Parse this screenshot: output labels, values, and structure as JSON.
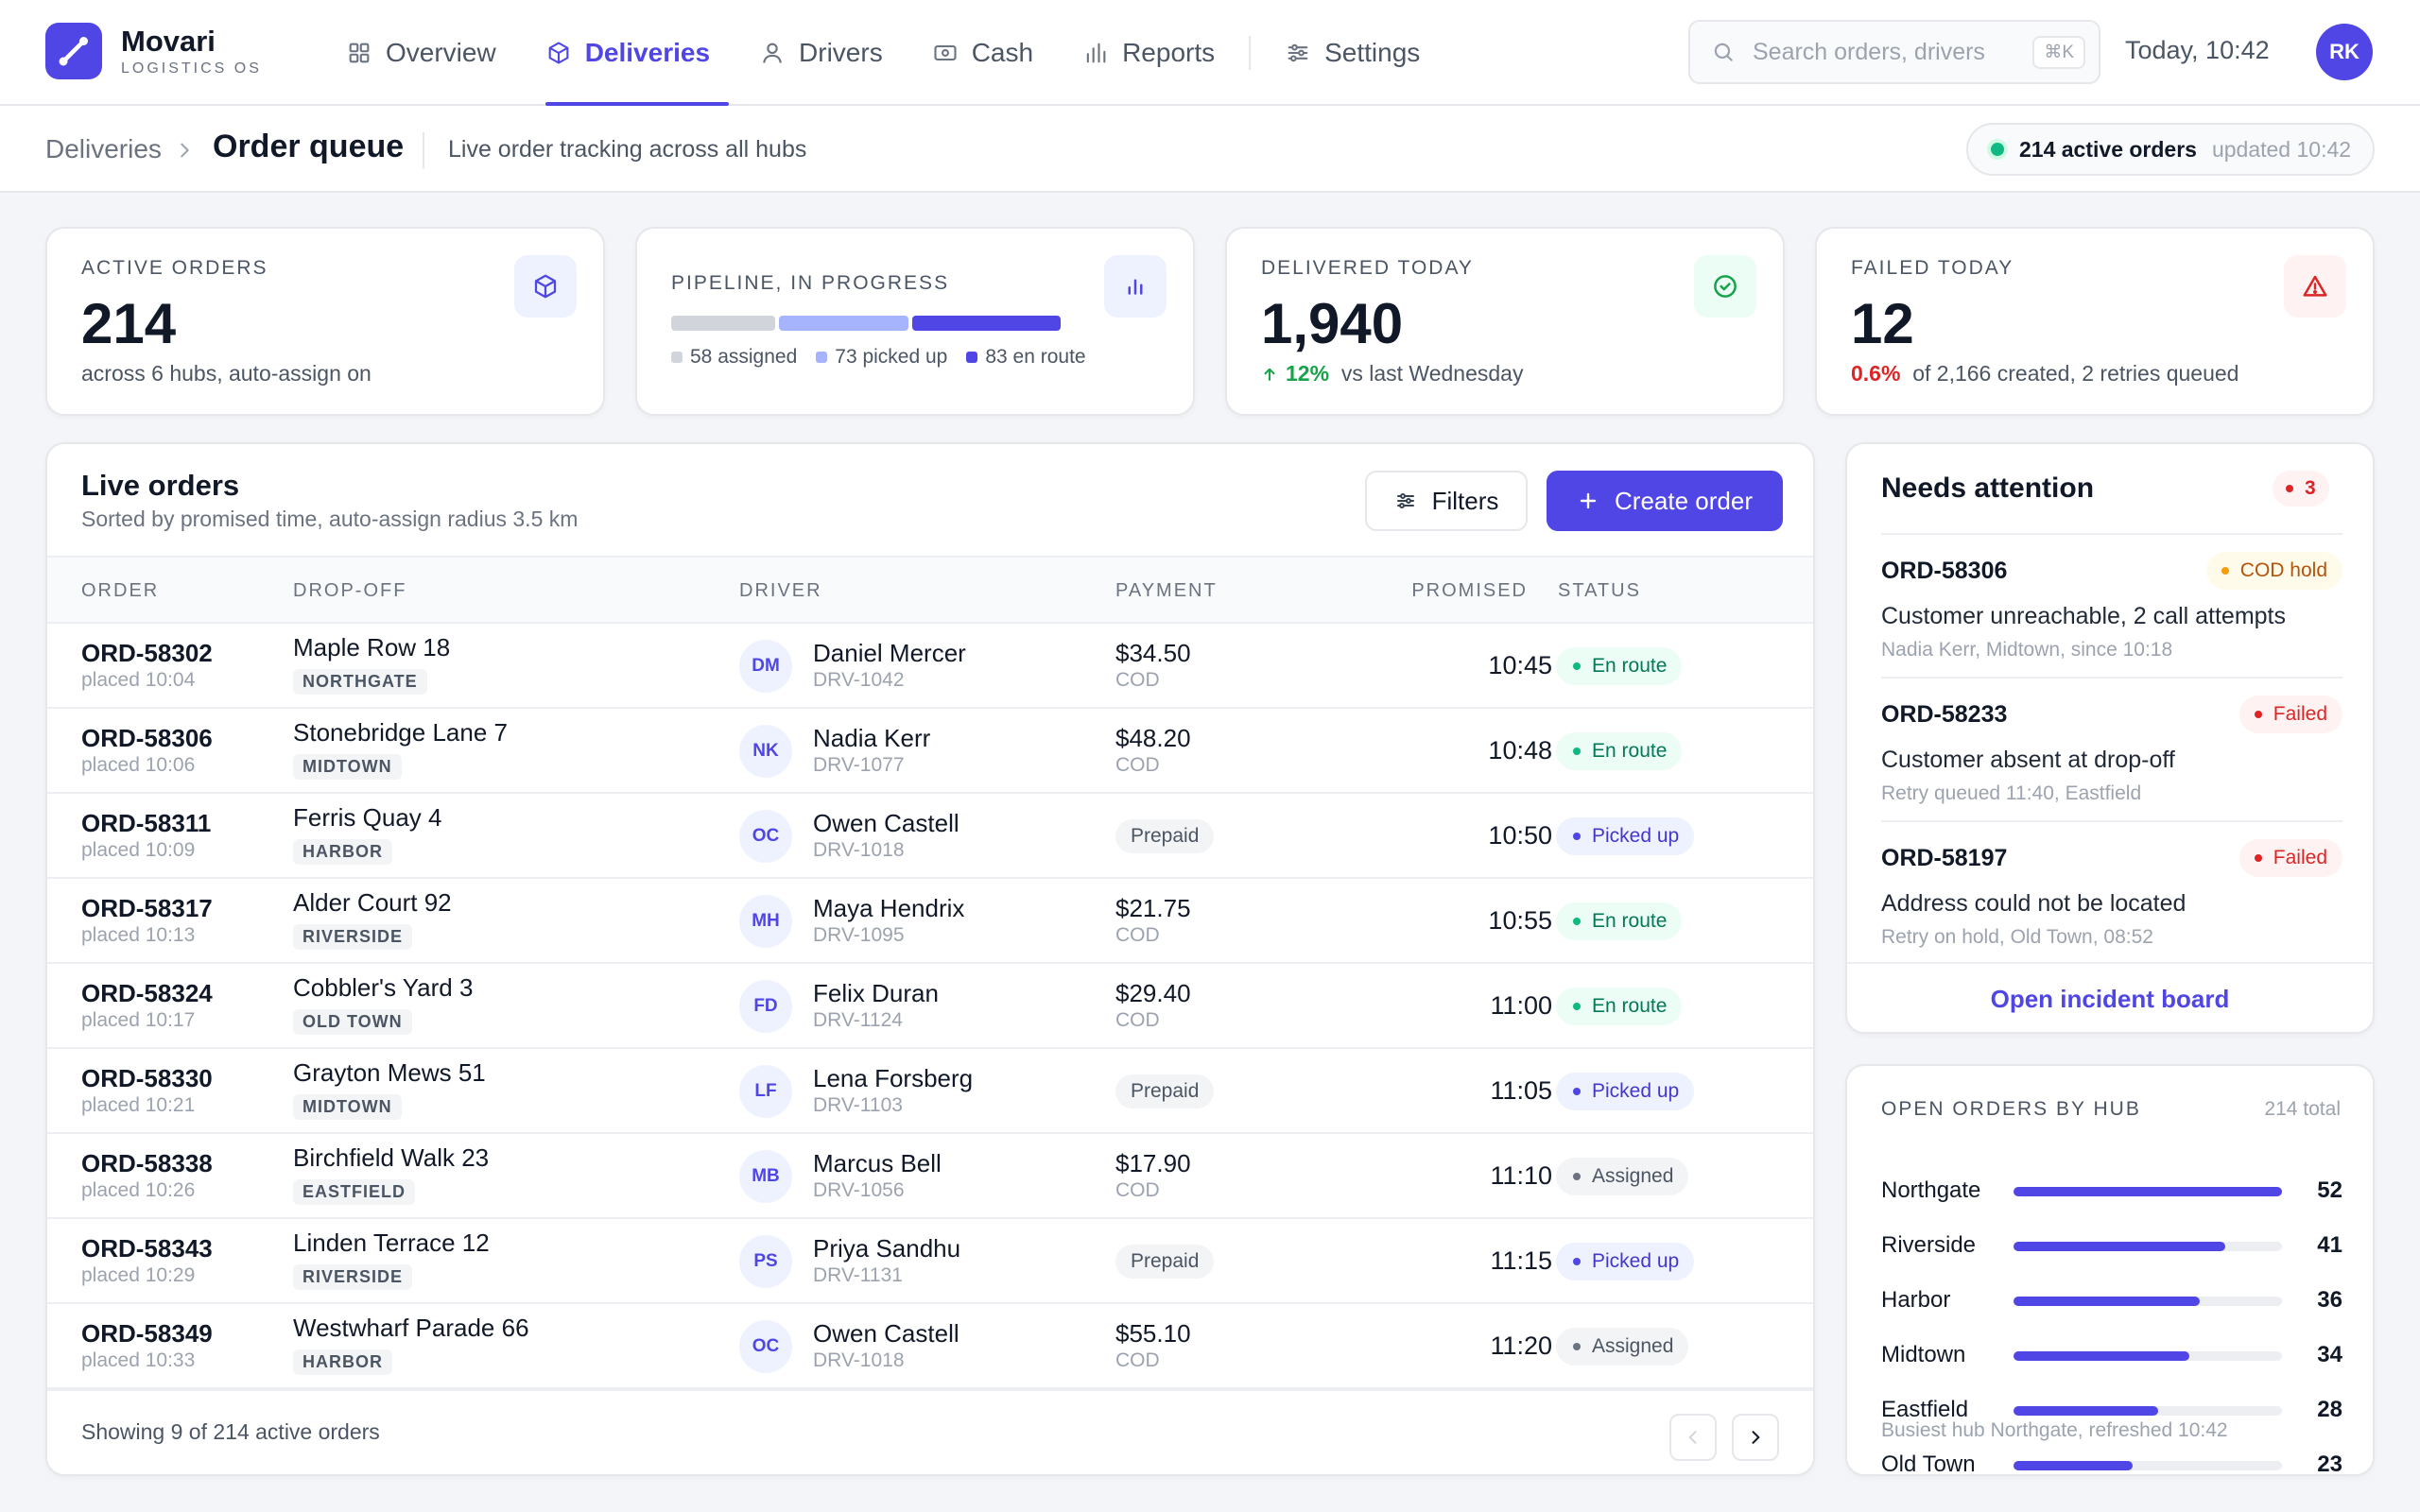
{
  "app": {
    "brand_name": "Movari",
    "brand_sub": "LOGISTICS OS",
    "nav": [
      {
        "label": "Overview",
        "icon": "grid-icon",
        "active": false
      },
      {
        "label": "Deliveries",
        "icon": "box-icon",
        "active": true
      },
      {
        "label": "Drivers",
        "icon": "user-icon",
        "active": false
      },
      {
        "label": "Cash",
        "icon": "cash-icon",
        "active": false
      },
      {
        "label": "Reports",
        "icon": "bar-chart-icon",
        "active": false
      },
      {
        "label": "Settings",
        "icon": "sliders-icon",
        "active": false
      }
    ],
    "search_placeholder": "Search orders, drivers",
    "search_shortcut": "⌘K",
    "clock": "Today, 10:42",
    "user_initials": "RK",
    "accent": "#4f46e5"
  },
  "subheader": {
    "breadcrumb_root": "Deliveries",
    "title": "Order queue",
    "description": "Live order tracking across all hubs",
    "live_count": "214 active orders",
    "live_updated": "updated 10:42"
  },
  "stats": {
    "active": {
      "label": "ACTIVE ORDERS",
      "value": "214",
      "sub": "across 6 hubs, auto-assign on"
    },
    "pipeline": {
      "label": "PIPELINE, IN PROGRESS",
      "segments": [
        {
          "label": "58 assigned",
          "value": 58,
          "color": "#d1d5db"
        },
        {
          "label": "73 picked up",
          "value": 73,
          "color": "#a5b4fc"
        },
        {
          "label": "83 en route",
          "value": 83,
          "color": "#4f46e5"
        }
      ]
    },
    "delivered": {
      "label": "DELIVERED TODAY",
      "value": "1,940",
      "delta": "12%",
      "delta_text": "vs last Wednesday"
    },
    "failed": {
      "label": "FAILED TODAY",
      "value": "12",
      "rate": "0.6%",
      "rate_text": "of 2,166 created, 2 retries queued"
    }
  },
  "orders": {
    "title": "Live orders",
    "subtitle": "Sorted by promised time, auto-assign radius 3.5 km",
    "filters_label": "Filters",
    "create_label": "Create order",
    "columns": {
      "order": "ORDER",
      "dropoff": "DROP-OFF",
      "driver": "DRIVER",
      "payment": "PAYMENT",
      "promised": "PROMISED",
      "status": "STATUS"
    },
    "rows": [
      {
        "id": "ORD-58302",
        "placed": "placed 10:04",
        "address": "Maple Row 18",
        "hub": "NORTHGATE",
        "initials": "DM",
        "driver": "Daniel Mercer",
        "driver_code": "DRV-1042",
        "amount": "$34.50",
        "method": "COD",
        "promised": "10:45",
        "status": "En route",
        "status_key": "enroute"
      },
      {
        "id": "ORD-58306",
        "placed": "placed 10:06",
        "address": "Stonebridge Lane 7",
        "hub": "MIDTOWN",
        "initials": "NK",
        "driver": "Nadia Kerr",
        "driver_code": "DRV-1077",
        "amount": "$48.20",
        "method": "COD",
        "promised": "10:48",
        "status": "En route",
        "status_key": "enroute"
      },
      {
        "id": "ORD-58311",
        "placed": "placed 10:09",
        "address": "Ferris Quay 4",
        "hub": "HARBOR",
        "initials": "OC",
        "driver": "Owen Castell",
        "driver_code": "DRV-1018",
        "amount": "",
        "method": "Prepaid",
        "promised": "10:50",
        "status": "Picked up",
        "status_key": "picked"
      },
      {
        "id": "ORD-58317",
        "placed": "placed 10:13",
        "address": "Alder Court 92",
        "hub": "RIVERSIDE",
        "initials": "MH",
        "driver": "Maya Hendrix",
        "driver_code": "DRV-1095",
        "amount": "$21.75",
        "method": "COD",
        "promised": "10:55",
        "status": "En route",
        "status_key": "enroute"
      },
      {
        "id": "ORD-58324",
        "placed": "placed 10:17",
        "address": "Cobbler's Yard 3",
        "hub": "OLD TOWN",
        "initials": "FD",
        "driver": "Felix Duran",
        "driver_code": "DRV-1124",
        "amount": "$29.40",
        "method": "COD",
        "promised": "11:00",
        "status": "En route",
        "status_key": "enroute"
      },
      {
        "id": "ORD-58330",
        "placed": "placed 10:21",
        "address": "Grayton Mews 51",
        "hub": "MIDTOWN",
        "initials": "LF",
        "driver": "Lena Forsberg",
        "driver_code": "DRV-1103",
        "amount": "",
        "method": "Prepaid",
        "promised": "11:05",
        "status": "Picked up",
        "status_key": "picked"
      },
      {
        "id": "ORD-58338",
        "placed": "placed 10:26",
        "address": "Birchfield Walk 23",
        "hub": "EASTFIELD",
        "initials": "MB",
        "driver": "Marcus Bell",
        "driver_code": "DRV-1056",
        "amount": "$17.90",
        "method": "COD",
        "promised": "11:10",
        "status": "Assigned",
        "status_key": "assigned"
      },
      {
        "id": "ORD-58343",
        "placed": "placed 10:29",
        "address": "Linden Terrace 12",
        "hub": "RIVERSIDE",
        "initials": "PS",
        "driver": "Priya Sandhu",
        "driver_code": "DRV-1131",
        "amount": "",
        "method": "Prepaid",
        "promised": "11:15",
        "status": "Picked up",
        "status_key": "picked"
      },
      {
        "id": "ORD-58349",
        "placed": "placed 10:33",
        "address": "Westwharf Parade 66",
        "hub": "HARBOR",
        "initials": "OC",
        "driver": "Owen Castell",
        "driver_code": "DRV-1018",
        "amount": "$55.10",
        "method": "COD",
        "promised": "11:20",
        "status": "Assigned",
        "status_key": "assigned"
      }
    ],
    "footer": "Showing 9 of 214 active orders"
  },
  "attention": {
    "title": "Needs attention",
    "count": "3",
    "items": [
      {
        "id": "ORD-58306",
        "tag": "COD hold",
        "tag_key": "cod",
        "message": "Customer unreachable, 2 call attempts",
        "meta": "Nadia Kerr, Midtown, since 10:18"
      },
      {
        "id": "ORD-58233",
        "tag": "Failed",
        "tag_key": "fail",
        "message": "Customer absent at drop-off",
        "meta": "Retry queued 11:40, Eastfield"
      },
      {
        "id": "ORD-58197",
        "tag": "Failed",
        "tag_key": "fail",
        "message": "Address could not be located",
        "meta": "Retry on hold, Old Town, 08:52"
      }
    ],
    "link": "Open incident board"
  },
  "hubs": {
    "title": "OPEN ORDERS BY HUB",
    "total": "214 total",
    "max": 52,
    "items": [
      {
        "name": "Northgate",
        "value": 52
      },
      {
        "name": "Riverside",
        "value": 41
      },
      {
        "name": "Harbor",
        "value": 36
      },
      {
        "name": "Midtown",
        "value": 34
      },
      {
        "name": "Eastfield",
        "value": 28
      },
      {
        "name": "Old Town",
        "value": 23
      }
    ],
    "footer": "Busiest hub Northgate, refreshed 10:42"
  }
}
